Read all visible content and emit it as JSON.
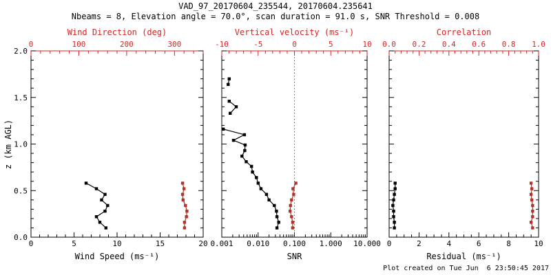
{
  "title": "VAD_97_20170604_235544, 20170604.235641",
  "subtitle": "Nbeams = 8, Elevation angle = 70.0°, scan duration = 91.0 s, SNR Threshold = 0.008",
  "footer": "Plot created on Tue Jun  6 23:50:45 2017",
  "colors": {
    "background": "#ffffff",
    "black": "#000000",
    "axis_red": "#d92222",
    "marker_red": "#b23428",
    "dotted_red": "#cc2a2a"
  },
  "chart_data": [
    {
      "type": "scatter",
      "marker": "square",
      "line": true,
      "y_axis": {
        "label": "z (km AGL)",
        "min": 0,
        "max": 2,
        "ticks": [
          0.0,
          0.5,
          1.0,
          1.5,
          2.0
        ],
        "tick_labels": [
          "0.0",
          "0.5",
          "1.0",
          "1.5",
          "2.0"
        ],
        "minor_step": 0.1,
        "show_labels": true
      },
      "bottom_axis": {
        "label": "Wind Speed (ms⁻¹)",
        "min": 0,
        "max": 20,
        "scale": "linear",
        "ticks": [
          0,
          5,
          10,
          15,
          20
        ],
        "tick_labels": [
          "0",
          "5",
          "10",
          "15",
          "20"
        ],
        "minor_step": 1
      },
      "top_axis": {
        "label": "Wind Direction (deg)",
        "min": 0,
        "max": 360,
        "ticks": [
          0,
          100,
          200,
          300
        ],
        "tick_labels": [
          "0",
          "100",
          "200",
          "300"
        ],
        "minor_step": 20
      },
      "series": [
        {
          "name": "wind_speed",
          "color": "black",
          "axis": "bottom",
          "segments": [
            [
              {
                "z": 0.1,
                "v": 8.7
              },
              {
                "z": 0.16,
                "v": 8.0
              },
              {
                "z": 0.22,
                "v": 7.6
              },
              {
                "z": 0.28,
                "v": 8.6
              },
              {
                "z": 0.34,
                "v": 8.9
              },
              {
                "z": 0.4,
                "v": 8.2
              },
              {
                "z": 0.46,
                "v": 8.6
              },
              {
                "z": 0.52,
                "v": 7.6
              },
              {
                "z": 0.58,
                "v": 6.4
              }
            ]
          ]
        },
        {
          "name": "wind_direction",
          "color": "red",
          "axis": "top",
          "segments": [
            [
              {
                "z": 0.1,
                "v": 321
              },
              {
                "z": 0.16,
                "v": 321
              },
              {
                "z": 0.22,
                "v": 325
              },
              {
                "z": 0.28,
                "v": 326
              },
              {
                "z": 0.34,
                "v": 323
              },
              {
                "z": 0.4,
                "v": 318
              },
              {
                "z": 0.46,
                "v": 317
              },
              {
                "z": 0.52,
                "v": 320
              },
              {
                "z": 0.58,
                "v": 317
              }
            ]
          ]
        }
      ]
    },
    {
      "type": "scatter",
      "marker": "square",
      "line": true,
      "y_axis": {
        "label": "",
        "min": 0,
        "max": 2,
        "ticks": [
          0.0,
          0.5,
          1.0,
          1.5,
          2.0
        ],
        "tick_labels": [],
        "minor_step": 0.1,
        "show_labels": false
      },
      "bottom_axis": {
        "label": "SNR",
        "min": 0.001,
        "max": 10,
        "scale": "log",
        "ticks": [
          0.001,
          0.01,
          0.1,
          1,
          10
        ],
        "tick_labels": [
          "0.001",
          "0.010",
          "0.100",
          "1.000",
          "10.000"
        ],
        "minor_step": 0
      },
      "top_axis": {
        "label": "Vertical velocity (ms⁻¹)",
        "min": -10,
        "max": 10,
        "ticks": [
          -10,
          -5,
          0,
          5,
          10
        ],
        "tick_labels": [
          "-10",
          "-5",
          "0",
          "5",
          "10"
        ],
        "minor_step": 1
      },
      "zero_line": {
        "value": 0.0,
        "axis": "top",
        "style": "dotted"
      },
      "series": [
        {
          "name": "snr",
          "color": "black",
          "axis": "bottom",
          "segments": [
            [
              {
                "z": 0.1,
                "v": 0.033
              },
              {
                "z": 0.16,
                "v": 0.037
              },
              {
                "z": 0.22,
                "v": 0.033
              },
              {
                "z": 0.28,
                "v": 0.032
              },
              {
                "z": 0.34,
                "v": 0.028
              },
              {
                "z": 0.4,
                "v": 0.02
              },
              {
                "z": 0.46,
                "v": 0.017
              },
              {
                "z": 0.52,
                "v": 0.012
              },
              {
                "z": 0.58,
                "v": 0.01
              },
              {
                "z": 0.64,
                "v": 0.009
              },
              {
                "z": 0.7,
                "v": 0.007
              },
              {
                "z": 0.76,
                "v": 0.0066
              },
              {
                "z": 0.81,
                "v": 0.0047
              },
              {
                "z": 0.87,
                "v": 0.0036
              },
              {
                "z": 0.93,
                "v": 0.0043
              },
              {
                "z": 0.99,
                "v": 0.0044
              },
              {
                "z": 1.04,
                "v": 0.0021
              },
              {
                "z": 1.1,
                "v": 0.0042
              },
              {
                "z": 1.16,
                "v": 0.0011
              }
            ],
            [
              {
                "z": 1.33,
                "v": 0.0017
              },
              {
                "z": 1.4,
                "v": 0.0025
              },
              {
                "z": 1.46,
                "v": 0.0016
              }
            ],
            [
              {
                "z": 1.64,
                "v": 0.0015
              },
              {
                "z": 1.7,
                "v": 0.0016
              }
            ]
          ]
        },
        {
          "name": "vertical_velocity",
          "color": "red",
          "axis": "top",
          "segments": [
            [
              {
                "z": 0.1,
                "v": -0.25
              },
              {
                "z": 0.16,
                "v": -0.25
              },
              {
                "z": 0.22,
                "v": -0.4
              },
              {
                "z": 0.28,
                "v": -0.6
              },
              {
                "z": 0.34,
                "v": -0.55
              },
              {
                "z": 0.4,
                "v": -0.4
              },
              {
                "z": 0.46,
                "v": -0.1
              },
              {
                "z": 0.52,
                "v": -0.2
              },
              {
                "z": 0.58,
                "v": 0.2
              }
            ]
          ]
        }
      ]
    },
    {
      "type": "scatter",
      "marker": "square",
      "line": true,
      "y_axis": {
        "label": "",
        "min": 0,
        "max": 2,
        "ticks": [
          0.0,
          0.5,
          1.0,
          1.5,
          2.0
        ],
        "tick_labels": [],
        "minor_step": 0.1,
        "show_labels": false
      },
      "bottom_axis": {
        "label": "Residual (ms⁻¹)",
        "min": 0,
        "max": 10,
        "scale": "linear",
        "ticks": [
          0,
          2,
          4,
          6,
          8,
          10
        ],
        "tick_labels": [
          "0",
          "2",
          "4",
          "6",
          "8",
          "10"
        ],
        "minor_step": 0.5
      },
      "top_axis": {
        "label": "Correlation",
        "min": 0,
        "max": 1,
        "ticks": [
          0.0,
          0.2,
          0.4,
          0.6,
          0.8,
          1.0
        ],
        "tick_labels": [
          "0.0",
          "0.2",
          "0.4",
          "0.6",
          "0.8",
          "1.0"
        ],
        "minor_step": 0.04
      },
      "series": [
        {
          "name": "residual",
          "color": "black",
          "axis": "bottom",
          "segments": [
            [
              {
                "z": 0.1,
                "v": 0.35
              },
              {
                "z": 0.16,
                "v": 0.35
              },
              {
                "z": 0.22,
                "v": 0.3
              },
              {
                "z": 0.28,
                "v": 0.3
              },
              {
                "z": 0.34,
                "v": 0.25
              },
              {
                "z": 0.4,
                "v": 0.3
              },
              {
                "z": 0.46,
                "v": 0.35
              },
              {
                "z": 0.52,
                "v": 0.4
              },
              {
                "z": 0.58,
                "v": 0.4
              }
            ]
          ]
        },
        {
          "name": "correlation",
          "color": "red",
          "axis": "top",
          "segments": [
            [
              {
                "z": 0.1,
                "v": 0.96
              },
              {
                "z": 0.16,
                "v": 0.95
              },
              {
                "z": 0.22,
                "v": 0.96
              },
              {
                "z": 0.28,
                "v": 0.96
              },
              {
                "z": 0.34,
                "v": 0.96
              },
              {
                "z": 0.4,
                "v": 0.955
              },
              {
                "z": 0.46,
                "v": 0.95
              },
              {
                "z": 0.52,
                "v": 0.955
              },
              {
                "z": 0.58,
                "v": 0.95
              }
            ]
          ]
        }
      ]
    }
  ]
}
